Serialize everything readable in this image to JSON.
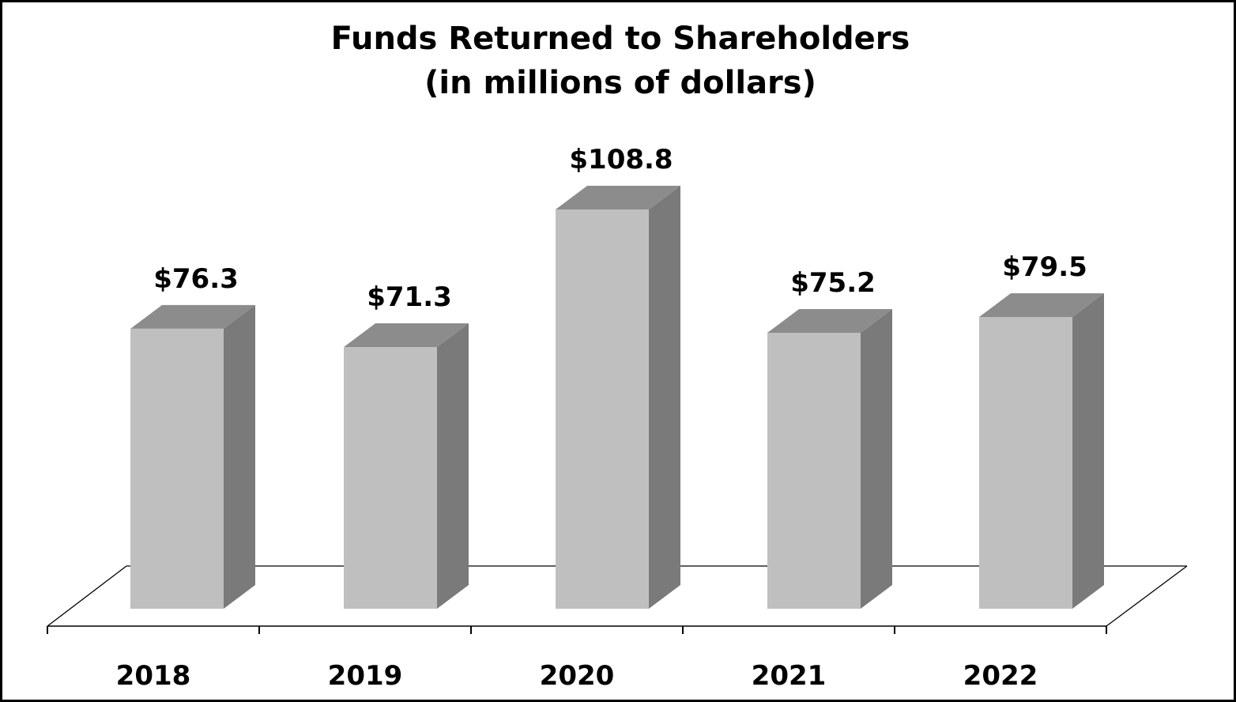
{
  "title": {
    "line1": "Funds Returned to Shareholders",
    "line2": "(in millions of dollars)"
  },
  "colors": {
    "front_face": "#bfbfbf",
    "top_face": "#8c8c8c",
    "side_face": "#7a7a7a",
    "axis": "#000000",
    "border": "#000000"
  },
  "bars": [
    {
      "year": "2018",
      "label": "$76.3"
    },
    {
      "year": "2019",
      "label": "$71.3"
    },
    {
      "year": "2020",
      "label": "$108.8"
    },
    {
      "year": "2021",
      "label": "$75.2"
    },
    {
      "year": "2022",
      "label": "$79.5"
    }
  ],
  "chart_data": {
    "type": "bar",
    "style": "3d-column",
    "title": "Funds Returned to Shareholders (in millions of dollars)",
    "categories": [
      "2018",
      "2019",
      "2020",
      "2021",
      "2022"
    ],
    "values": [
      76.3,
      71.3,
      108.8,
      75.2,
      79.5
    ],
    "data_labels": [
      "$76.3",
      "$71.3",
      "$108.8",
      "$75.2",
      "$79.5"
    ],
    "xlabel": "",
    "ylabel": "",
    "unit": "millions of dollars",
    "grid": false,
    "legend": null,
    "y_axis_visible": false
  }
}
